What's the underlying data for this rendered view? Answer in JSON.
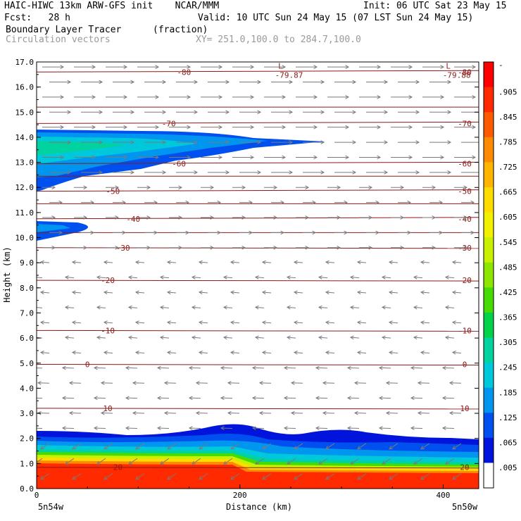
{
  "header": {
    "title_left": "HAIC-HIWC 13km ARW-GFS init    NCAR/MMM",
    "init": "Init: 06 UTC Sat 23 May 15",
    "fcst": "Fcst:   28 h",
    "valid": "Valid: 10 UTC Sun 24 May 15 (07 LST Sun 24 May 15)",
    "field": "Boundary Layer Tracer",
    "units": "(fraction)",
    "vectors": "Circulation vectors",
    "xy": "XY= 251.0,100.0 to 284.7,100.0"
  },
  "chart_data": {
    "type": "heatmap",
    "ylabel": "Height (km)",
    "xlabel": "Distance (km)",
    "xlim": [
      0,
      435
    ],
    "ylim": [
      0,
      17
    ],
    "x_ticks": [
      {
        "v": 0,
        "label": "0"
      },
      {
        "v": 200,
        "label": "200"
      },
      {
        "v": 400,
        "label": "400"
      }
    ],
    "x_endpoints": [
      "5n54w",
      "5n50w"
    ],
    "y_ticks": [
      "0.0",
      "1.0",
      "2.0",
      "3.0",
      "4.0",
      "5.0",
      "6.0",
      "7.0",
      "8.0",
      "9.0",
      "10.0",
      "11.0",
      "12.0",
      "13.0",
      "14.0",
      "15.0",
      "16.0",
      "17.0"
    ],
    "colorbar": {
      "labels": [
        "-",
        ".905",
        ".845",
        ".785",
        ".725",
        ".665",
        ".605",
        ".545",
        ".485",
        ".425",
        ".365",
        ".305",
        ".245",
        ".185",
        ".125",
        ".065",
        ".005"
      ],
      "colors": [
        "#ff0000",
        "#ff2a00",
        "#ff5a00",
        "#ff8a00",
        "#ffb400",
        "#ffdc00",
        "#f0f000",
        "#c8f000",
        "#8ce600",
        "#46dc00",
        "#00d24a",
        "#00d2a0",
        "#00c8dc",
        "#0096f0",
        "#0050f0",
        "#0014dc",
        "#ffffff"
      ]
    },
    "isotherms": [
      {
        "label": "-80",
        "y": 16.6,
        "x_label": 145
      },
      {
        "label": "-70",
        "y": 14.55,
        "x_label": 130
      },
      {
        "label": "-60",
        "y": 12.95,
        "x_label": 140
      },
      {
        "label": "-50",
        "y": 11.85,
        "x_label": 75
      },
      {
        "label": "-40",
        "y": 10.75,
        "x_label": 95
      },
      {
        "label": "-30",
        "y": 9.6,
        "x_label": 85
      },
      {
        "label": "-20",
        "y": 8.3,
        "x_label": 70
      },
      {
        "label": "-10",
        "y": 6.3,
        "x_label": 70
      },
      {
        "label": "0",
        "y": 4.95,
        "x_label": 50
      },
      {
        "label": "10",
        "y": 3.2,
        "x_label": 70
      },
      {
        "label": "20",
        "y": 0.85,
        "x_label": 80
      }
    ],
    "lows": [
      {
        "label": "L",
        "value": "-79.87",
        "x": 240,
        "y": 16.9
      },
      {
        "label": "L",
        "value": "-79.88",
        "x": 405,
        "y": 16.9
      }
    ]
  }
}
